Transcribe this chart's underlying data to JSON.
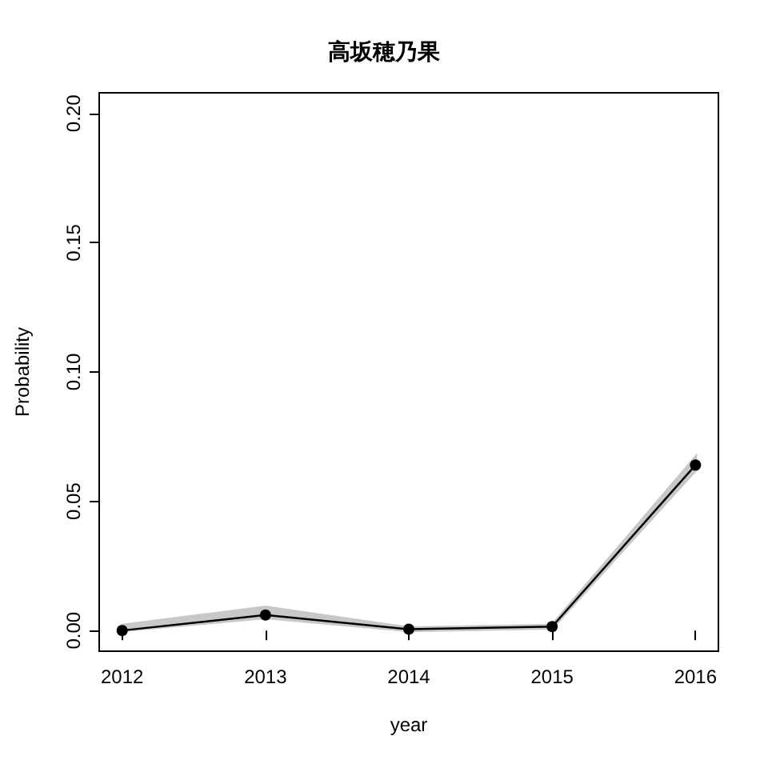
{
  "chart_data": {
    "type": "line",
    "title": "高坂穂乃果",
    "xlabel": "year",
    "ylabel": "Probability",
    "x": [
      2012,
      2013,
      2014,
      2015,
      2016
    ],
    "series": [
      {
        "color": "#000000",
        "values": [
          0,
          0.006,
          0.0005,
          0.0015,
          0.064
        ],
        "lower": [
          0,
          0.005,
          0,
          0.001,
          0.062
        ],
        "upper": [
          0.002,
          0.009,
          0.001,
          0.002,
          0.067
        ]
      }
    ],
    "xlim": [
      2011.84,
      2016.16
    ],
    "xticks": [
      2012,
      2013,
      2014,
      2015,
      2016
    ],
    "ylim": [
      -0.008,
      0.208
    ],
    "yticks": [
      {
        "value": 0,
        "label": "0.00"
      },
      0.05,
      {
        "value": 0.1,
        "label": "0.10"
      },
      0.15,
      {
        "value": 0.2,
        "label": "0.20"
      }
    ],
    "grid": false,
    "marker": "circle",
    "line_style": "solid"
  }
}
